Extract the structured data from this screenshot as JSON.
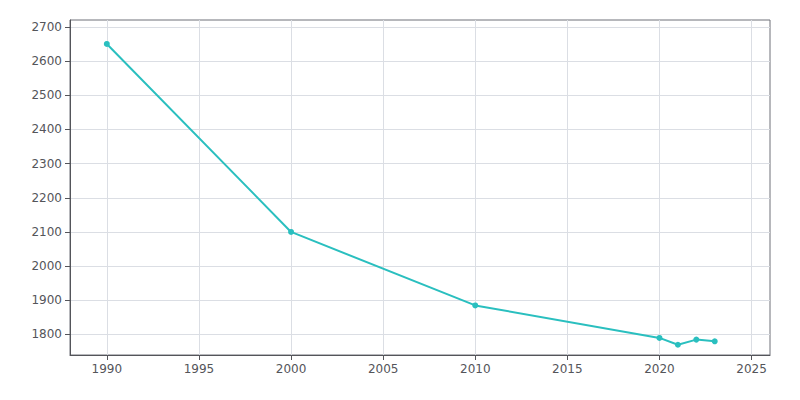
{
  "chart_data": {
    "type": "line",
    "x": [
      1990,
      2000,
      2010,
      2020,
      2021,
      2022,
      2023
    ],
    "values": [
      2650,
      2100,
      1885,
      1790,
      1770,
      1785,
      1780
    ],
    "color": "#2abfbf",
    "marker": "circle",
    "xlim": [
      1988,
      2026
    ],
    "xticks": [
      1990,
      1995,
      2000,
      2005,
      2010,
      2015,
      2020,
      2025
    ],
    "ylim": [
      1740,
      2720
    ],
    "yticks": [
      1800,
      1900,
      2000,
      2100,
      2200,
      2300,
      2400,
      2500,
      2600,
      2700
    ],
    "grid": true
  }
}
